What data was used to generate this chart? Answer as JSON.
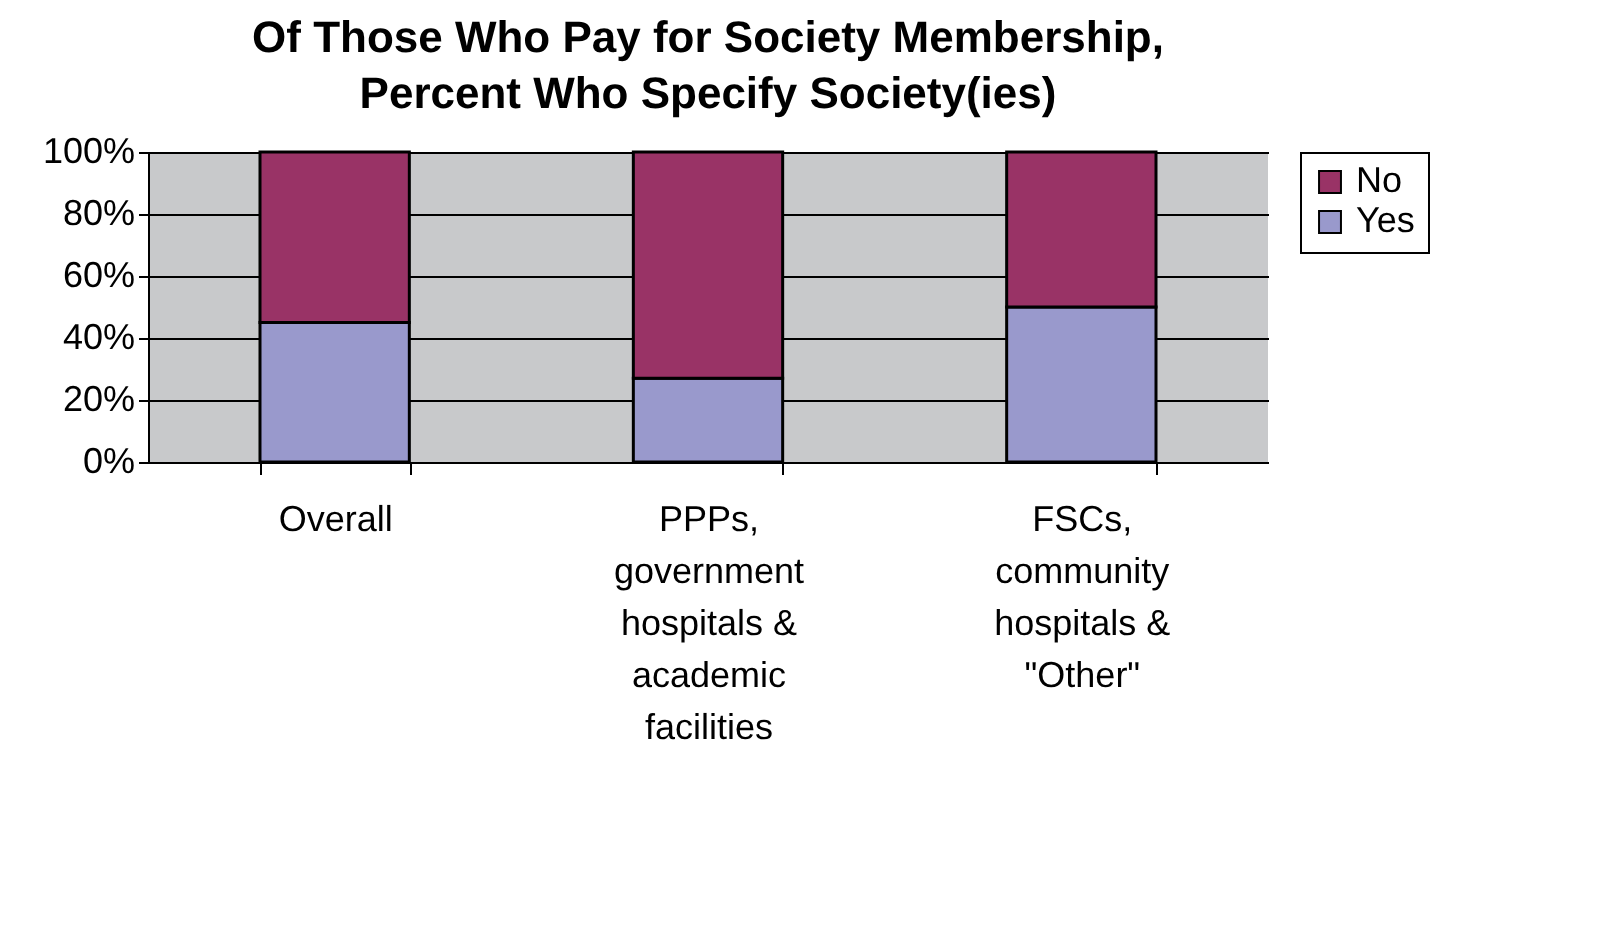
{
  "chart_data": {
    "type": "bar",
    "title": "Of Those Who Pay for Society Membership, Percent Who Specify Society(ies)",
    "categories": [
      "Overall",
      "PPPs, government hospitals & academic facilities",
      "FSCs, community hospitals & \"Other\""
    ],
    "stacked": true,
    "series": [
      {
        "name": "Yes",
        "color": "#9999cc",
        "values": [
          45,
          27,
          50
        ]
      },
      {
        "name": "No",
        "color": "#993366",
        "values": [
          55,
          73,
          50
        ]
      }
    ],
    "ylim": [
      0,
      100
    ],
    "yticks": [
      {
        "value": 0,
        "label": "0%"
      },
      {
        "value": 20,
        "label": "20%"
      },
      {
        "value": 40,
        "label": "40%"
      },
      {
        "value": 60,
        "label": "60%"
      },
      {
        "value": 80,
        "label": "80%"
      },
      {
        "value": 100,
        "label": "100%"
      }
    ],
    "grid": "y",
    "legend": "right"
  }
}
